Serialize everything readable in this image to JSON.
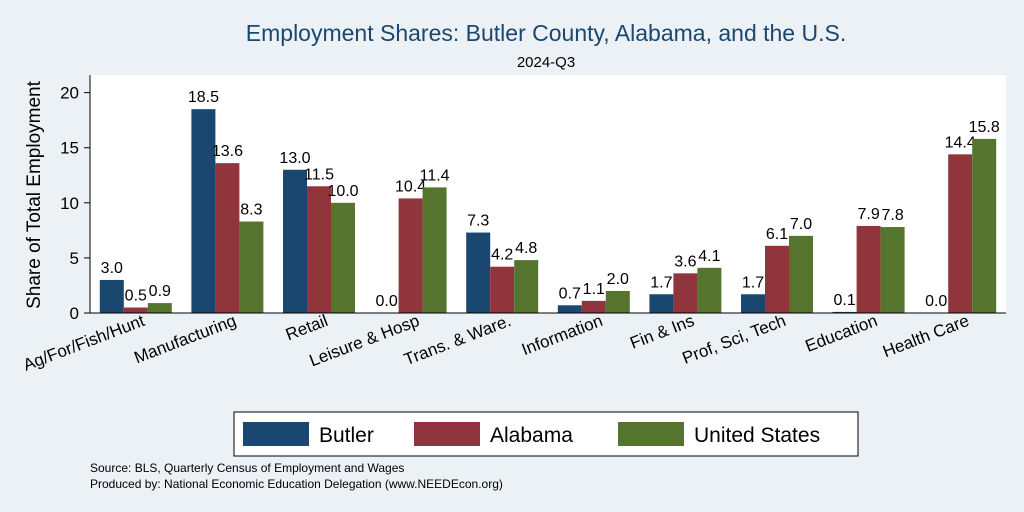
{
  "chart_data": {
    "type": "bar",
    "title": "Employment Shares: Butler County, Alabama, and the U.S.",
    "subtitle": "2024-Q3",
    "ylabel": "Share of Total Employment",
    "xlabel": "",
    "ylim": [
      0,
      21.6
    ],
    "yticks": [
      0,
      5,
      10,
      15,
      20
    ],
    "categories": [
      "Ag/For/Fish/Hunt",
      "Manufacturing",
      "Retail",
      "Leisure & Hosp",
      "Trans. & Ware.",
      "Information",
      "Fin & Ins",
      "Prof, Sci, Tech",
      "Education",
      "Health Care"
    ],
    "series": [
      {
        "name": "Butler",
        "color": "#1a476f",
        "values": [
          3.0,
          18.5,
          13.0,
          0.0,
          7.3,
          0.7,
          1.7,
          1.7,
          0.1,
          0.0
        ],
        "labels": [
          "3.0",
          "18.5",
          "13.0",
          "0.0",
          "7.3",
          "0.7",
          "1.7",
          "1.7",
          "0.1",
          "0.0"
        ]
      },
      {
        "name": "Alabama",
        "color": "#90353b",
        "values": [
          0.5,
          13.6,
          11.5,
          10.4,
          4.2,
          1.1,
          3.6,
          6.1,
          7.9,
          14.4
        ],
        "labels": [
          "0.5",
          "13.6",
          "11.5",
          "10.4",
          "4.2",
          "1.1",
          "3.6",
          "6.1",
          "7.9",
          "14.4"
        ]
      },
      {
        "name": "United States",
        "color": "#55752f",
        "values": [
          0.9,
          8.3,
          10.0,
          11.4,
          4.8,
          2.0,
          4.1,
          7.0,
          7.8,
          15.8
        ],
        "labels": [
          "0.9",
          "8.3",
          "10.0",
          "11.4",
          "4.8",
          "2.0",
          "4.1",
          "7.0",
          "7.8",
          "15.8"
        ]
      }
    ],
    "legend_position": "bottom",
    "grid": false
  },
  "notes": {
    "source": "Source: BLS, Quarterly Census of Employment and Wages",
    "produced_by": "Produced by: National Economic Education Delegation (www.NEEDEcon.org)"
  }
}
